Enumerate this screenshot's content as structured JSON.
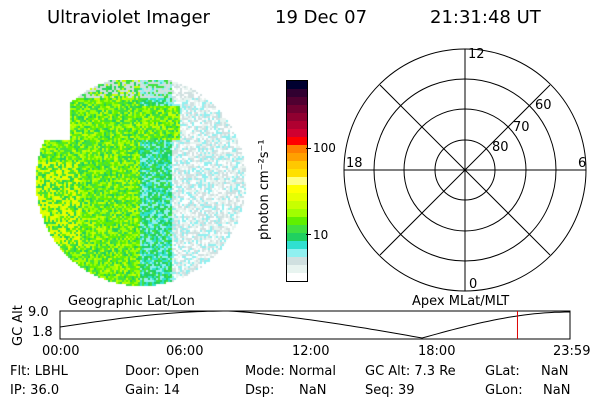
{
  "header": {
    "instrument": "Ultraviolet Imager",
    "date": "19 Dec 07",
    "time": "21:31:48 UT"
  },
  "colorbar": {
    "label": "photon cm⁻²s⁻¹",
    "ticks": [
      "100",
      "10"
    ],
    "colors": [
      "#000030",
      "#300030",
      "#500030",
      "#700030",
      "#900030",
      "#b00030",
      "#d00030",
      "#ff0000",
      "#ff8000",
      "#ffa000",
      "#ffc800",
      "#ffe000",
      "#ffff80",
      "#ffff00",
      "#e8ff00",
      "#c8ff00",
      "#a0ff00",
      "#60f000",
      "#40e040",
      "#20d060",
      "#30e0d0",
      "#90f0f0",
      "#d0e0e0",
      "#e8f4f0",
      "#ffffff"
    ]
  },
  "polar": {
    "mlt_labels": {
      "top": "12",
      "left": "18",
      "right": "6",
      "bottom": "0"
    },
    "lat_labels": [
      "60",
      "70",
      "80"
    ]
  },
  "timeline": {
    "left_title": "Geographic Lat/Lon",
    "right_title": "Apex MLat/MLT",
    "ylabel": "GC Alt",
    "ymax": "9.0",
    "ymin": "1.8",
    "x_ticks": [
      "00:00",
      "06:00",
      "12:00",
      "18:00",
      "23:59"
    ],
    "current_time_fraction": 0.897,
    "marker_color": "#dd0000"
  },
  "status": {
    "row1": [
      "Flt: LBHL",
      "Door: Open",
      "Mode: Normal",
      "GC Alt: 7.3 Re",
      "GLat:",
      "NaN"
    ],
    "row2": [
      "IP: 36.0",
      "Gain: 14",
      "Dsp:",
      "NaN",
      "Seq: 39",
      "GLon:",
      "NaN"
    ]
  }
}
